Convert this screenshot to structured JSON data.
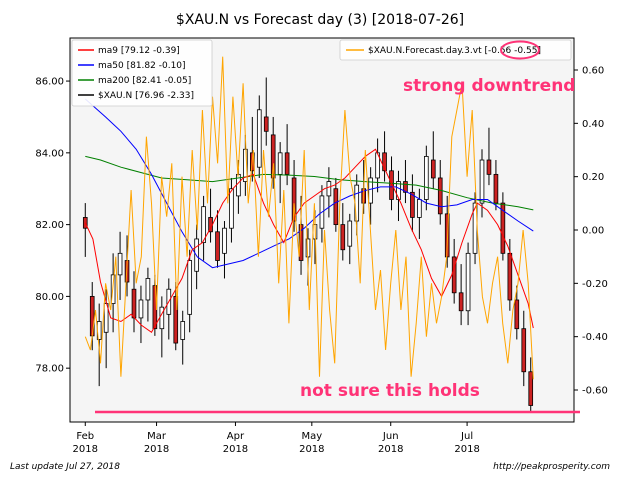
{
  "chart_data": {
    "type": "candlestick-with-overlays",
    "title": "$XAU.N vs Forecast day (3)  [2018-07-26]",
    "x_ticks": [
      {
        "date": "2018-02-01",
        "month": "Feb",
        "year": "2018"
      },
      {
        "date": "2018-03-01",
        "month": "Mar",
        "year": "2018"
      },
      {
        "date": "2018-04-01",
        "month": "Apr",
        "year": "2018"
      },
      {
        "date": "2018-05-01",
        "month": "May",
        "year": "2018"
      },
      {
        "date": "2018-06-01",
        "month": "Jun",
        "year": "2018"
      },
      {
        "date": "2018-07-01",
        "month": "Jul",
        "year": "2018"
      }
    ],
    "xlim": [
      "2018-01-26",
      "2018-08-12"
    ],
    "left_axis": {
      "ylim": [
        76.5,
        87.2
      ],
      "ticks": [
        "78.00",
        "80.00",
        "82.00",
        "84.00",
        "86.00"
      ]
    },
    "right_axis": {
      "ylim": [
        -0.72,
        0.72
      ],
      "ticks": [
        "-0.60",
        "-0.40",
        "-0.20",
        "0.00",
        "0.20",
        "0.40",
        "0.60"
      ]
    },
    "legend_left": [
      {
        "label": "ma9 [79.12 -0.39]",
        "color": "#ff0000"
      },
      {
        "label": "ma50 [81.82 -0.10]",
        "color": "#0000ff"
      },
      {
        "label": "ma200 [82.41 -0.05]",
        "color": "#008000"
      },
      {
        "label": "$XAU.N [76.96 -2.33]",
        "color": "#000000"
      }
    ],
    "legend_right": {
      "label_prefix": "$XAU.N.Forecast.day.3.vt",
      "value1": "-0.56",
      "value2": "-0.55",
      "color": "#ffa500"
    },
    "annotations": [
      {
        "text": "strong downtrend",
        "color": "#ff3377"
      },
      {
        "text": "not sure this holds",
        "color": "#ff3377"
      }
    ],
    "horizontal_line": {
      "value": 76.78,
      "color": "#ff3377"
    },
    "ma200": [
      [
        0,
        83.9
      ],
      [
        6,
        83.8
      ],
      [
        14,
        83.6
      ],
      [
        22,
        83.45
      ],
      [
        30,
        83.3
      ],
      [
        40,
        83.25
      ],
      [
        50,
        83.2
      ],
      [
        60,
        83.3
      ],
      [
        70,
        83.4
      ],
      [
        80,
        83.38
      ],
      [
        90,
        83.34
      ],
      [
        100,
        83.25
      ],
      [
        110,
        83.2
      ],
      [
        120,
        83.15
      ],
      [
        130,
        83.1
      ],
      [
        140,
        82.95
      ],
      [
        150,
        82.75
      ],
      [
        160,
        82.6
      ],
      [
        170,
        82.5
      ],
      [
        176,
        82.41
      ]
    ],
    "ma50": [
      [
        0,
        85.5
      ],
      [
        8,
        85.0
      ],
      [
        14,
        84.6
      ],
      [
        20,
        84.1
      ],
      [
        26,
        83.4
      ],
      [
        32,
        82.6
      ],
      [
        38,
        81.8
      ],
      [
        44,
        81.1
      ],
      [
        50,
        80.8
      ],
      [
        56,
        80.9
      ],
      [
        62,
        81.0
      ],
      [
        68,
        81.2
      ],
      [
        74,
        81.4
      ],
      [
        80,
        81.6
      ],
      [
        86,
        81.9
      ],
      [
        92,
        82.3
      ],
      [
        98,
        82.6
      ],
      [
        104,
        82.8
      ],
      [
        110,
        82.95
      ],
      [
        116,
        83.05
      ],
      [
        122,
        83.05
      ],
      [
        128,
        82.85
      ],
      [
        134,
        82.6
      ],
      [
        140,
        82.5
      ],
      [
        146,
        82.55
      ],
      [
        152,
        82.7
      ],
      [
        158,
        82.7
      ],
      [
        164,
        82.4
      ],
      [
        170,
        82.1
      ],
      [
        176,
        81.82
      ]
    ],
    "ma9": [
      [
        0,
        82.05
      ],
      [
        3,
        81.6
      ],
      [
        6,
        80.4
      ],
      [
        10,
        79.4
      ],
      [
        14,
        79.3
      ],
      [
        18,
        79.5
      ],
      [
        22,
        79.2
      ],
      [
        26,
        79.0
      ],
      [
        30,
        79.5
      ],
      [
        34,
        80.0
      ],
      [
        38,
        80.5
      ],
      [
        42,
        81.3
      ],
      [
        46,
        81.5
      ],
      [
        50,
        82.0
      ],
      [
        54,
        82.6
      ],
      [
        58,
        83.0
      ],
      [
        62,
        83.3
      ],
      [
        66,
        83.4
      ],
      [
        70,
        82.6
      ],
      [
        74,
        82.0
      ],
      [
        78,
        81.5
      ],
      [
        82,
        82.2
      ],
      [
        86,
        82.6
      ],
      [
        90,
        82.8
      ],
      [
        94,
        83.0
      ],
      [
        98,
        83.1
      ],
      [
        102,
        83.3
      ],
      [
        106,
        83.6
      ],
      [
        110,
        83.9
      ],
      [
        114,
        84.1
      ],
      [
        116,
        83.8
      ],
      [
        120,
        83.2
      ],
      [
        124,
        82.6
      ],
      [
        128,
        81.9
      ],
      [
        132,
        81.3
      ],
      [
        136,
        80.5
      ],
      [
        140,
        80.0
      ],
      [
        144,
        80.6
      ],
      [
        148,
        81.5
      ],
      [
        152,
        82.3
      ],
      [
        154,
        82.6
      ],
      [
        158,
        82.4
      ],
      [
        162,
        82.0
      ],
      [
        166,
        81.4
      ],
      [
        170,
        80.6
      ],
      [
        174,
        79.8
      ],
      [
        176,
        79.12
      ]
    ],
    "forecast": [
      [
        0,
        -0.4
      ],
      [
        2,
        -0.45
      ],
      [
        4,
        -0.3
      ],
      [
        6,
        -0.5
      ],
      [
        8,
        -0.2
      ],
      [
        10,
        -0.3
      ],
      [
        12,
        -0.1
      ],
      [
        14,
        -0.55
      ],
      [
        16,
        -0.2
      ],
      [
        18,
        0.15
      ],
      [
        20,
        -0.2
      ],
      [
        22,
        -0.1
      ],
      [
        24,
        0.35
      ],
      [
        26,
        0.1
      ],
      [
        28,
        -0.3
      ],
      [
        30,
        0.2
      ],
      [
        32,
        0.05
      ],
      [
        34,
        0.25
      ],
      [
        36,
        -0.3
      ],
      [
        38,
        0.2
      ],
      [
        40,
        -0.1
      ],
      [
        42,
        0.3
      ],
      [
        44,
        0.0
      ],
      [
        46,
        0.45
      ],
      [
        48,
        0.1
      ],
      [
        50,
        0.5
      ],
      [
        52,
        0.25
      ],
      [
        54,
        0.65
      ],
      [
        56,
        0.1
      ],
      [
        58,
        0.5
      ],
      [
        60,
        0.2
      ],
      [
        62,
        0.55
      ],
      [
        64,
        0.1
      ],
      [
        66,
        0.3
      ],
      [
        68,
        -0.1
      ],
      [
        70,
        0.3
      ],
      [
        72,
        0.05
      ],
      [
        74,
        0.25
      ],
      [
        76,
        -0.2
      ],
      [
        78,
        0.15
      ],
      [
        80,
        -0.35
      ],
      [
        82,
        0.1
      ],
      [
        84,
        -0.1
      ],
      [
        86,
        0.3
      ],
      [
        88,
        -0.3
      ],
      [
        90,
        0.1
      ],
      [
        92,
        -0.55
      ],
      [
        94,
        0.0
      ],
      [
        96,
        -0.3
      ],
      [
        98,
        -0.5
      ],
      [
        100,
        0.1
      ],
      [
        102,
        0.45
      ],
      [
        104,
        0.2
      ],
      [
        106,
        0.1
      ],
      [
        108,
        -0.2
      ],
      [
        110,
        0.3
      ],
      [
        112,
        0.0
      ],
      [
        114,
        -0.3
      ],
      [
        116,
        -0.15
      ],
      [
        118,
        -0.45
      ],
      [
        120,
        -0.2
      ],
      [
        122,
        0.0
      ],
      [
        124,
        -0.3
      ],
      [
        126,
        -0.1
      ],
      [
        128,
        -0.55
      ],
      [
        130,
        -0.35
      ],
      [
        132,
        -0.1
      ],
      [
        134,
        -0.4
      ],
      [
        136,
        -0.2
      ],
      [
        138,
        -0.35
      ],
      [
        140,
        -0.25
      ],
      [
        142,
        -0.1
      ],
      [
        144,
        0.35
      ],
      [
        146,
        0.45
      ],
      [
        148,
        0.55
      ],
      [
        150,
        0.2
      ],
      [
        152,
        0.45
      ],
      [
        154,
        0.0
      ],
      [
        156,
        -0.25
      ],
      [
        158,
        -0.35
      ],
      [
        160,
        -0.2
      ],
      [
        162,
        -0.1
      ],
      [
        164,
        -0.35
      ],
      [
        166,
        -0.5
      ],
      [
        168,
        -0.3
      ],
      [
        170,
        -0.2
      ],
      [
        172,
        0.0
      ],
      [
        174,
        -0.2
      ],
      [
        176,
        -0.56
      ]
    ],
    "candles": [
      [
        82.2,
        82.6,
        81.1,
        81.9
      ],
      [
        80.0,
        80.4,
        78.5,
        78.9
      ],
      [
        78.8,
        79.8,
        77.5,
        79.3
      ],
      [
        79.0,
        80.2,
        78.0,
        79.8
      ],
      [
        79.8,
        81.2,
        79.0,
        80.6
      ],
      [
        80.6,
        81.8,
        79.9,
        81.2
      ],
      [
        81.0,
        81.7,
        80.0,
        80.4
      ],
      [
        80.2,
        80.7,
        79.0,
        79.4
      ],
      [
        79.4,
        80.3,
        78.7,
        79.9
      ],
      [
        79.9,
        80.8,
        79.3,
        80.5
      ],
      [
        80.3,
        80.6,
        78.9,
        79.1
      ],
      [
        79.1,
        80.0,
        78.3,
        79.7
      ],
      [
        79.5,
        80.5,
        78.8,
        80.2
      ],
      [
        80.0,
        80.4,
        78.5,
        78.7
      ],
      [
        78.8,
        79.6,
        78.1,
        79.3
      ],
      [
        79.5,
        81.3,
        79.0,
        81.0
      ],
      [
        80.7,
        82.0,
        80.2,
        81.6
      ],
      [
        81.5,
        82.8,
        81.0,
        82.5
      ],
      [
        82.2,
        83.0,
        81.5,
        81.8
      ],
      [
        81.8,
        82.4,
        80.8,
        81.0
      ],
      [
        81.2,
        82.1,
        80.5,
        81.9
      ],
      [
        81.9,
        83.3,
        81.5,
        83.0
      ],
      [
        82.8,
        83.8,
        82.3,
        83.4
      ],
      [
        83.2,
        84.5,
        82.8,
        84.1
      ],
      [
        84.0,
        85.0,
        83.2,
        83.5
      ],
      [
        83.6,
        85.6,
        83.3,
        85.2
      ],
      [
        85.0,
        86.1,
        84.2,
        84.6
      ],
      [
        84.5,
        85.0,
        83.0,
        83.3
      ],
      [
        83.4,
        84.3,
        82.6,
        84.0
      ],
      [
        84.0,
        84.8,
        83.1,
        83.4
      ],
      [
        83.3,
        83.8,
        81.8,
        82.1
      ],
      [
        82.0,
        82.8,
        80.6,
        81.0
      ],
      [
        81.1,
        81.9,
        80.3,
        81.6
      ],
      [
        81.6,
        82.4,
        80.9,
        82.0
      ],
      [
        81.9,
        83.1,
        81.5,
        82.8
      ],
      [
        82.8,
        83.6,
        82.2,
        83.2
      ],
      [
        83.0,
        83.3,
        81.8,
        82.0
      ],
      [
        82.0,
        82.6,
        81.0,
        81.3
      ],
      [
        81.4,
        82.3,
        80.9,
        82.1
      ],
      [
        82.1,
        83.4,
        81.7,
        83.1
      ],
      [
        83.0,
        83.8,
        82.3,
        82.6
      ],
      [
        82.6,
        83.6,
        82.0,
        83.3
      ],
      [
        83.3,
        84.4,
        82.9,
        84.0
      ],
      [
        84.0,
        84.6,
        83.2,
        83.5
      ],
      [
        83.5,
        83.9,
        82.4,
        82.7
      ],
      [
        82.7,
        83.5,
        82.1,
        83.2
      ],
      [
        83.2,
        83.8,
        82.6,
        82.9
      ],
      [
        82.9,
        83.4,
        81.8,
        82.2
      ],
      [
        82.2,
        83.0,
        81.6,
        82.7
      ],
      [
        82.7,
        84.2,
        82.4,
        83.9
      ],
      [
        83.8,
        84.6,
        83.0,
        83.3
      ],
      [
        83.3,
        83.8,
        82.0,
        82.3
      ],
      [
        82.3,
        82.8,
        80.8,
        81.1
      ],
      [
        81.1,
        81.6,
        79.8,
        80.1
      ],
      [
        80.1,
        80.9,
        79.2,
        79.6
      ],
      [
        79.6,
        81.5,
        79.2,
        81.2
      ],
      [
        81.2,
        82.9,
        80.9,
        82.6
      ],
      [
        82.6,
        84.1,
        82.2,
        83.8
      ],
      [
        83.8,
        84.7,
        83.1,
        83.4
      ],
      [
        83.4,
        83.8,
        82.4,
        82.6
      ],
      [
        82.6,
        82.9,
        81.0,
        81.2
      ],
      [
        81.2,
        81.6,
        79.6,
        79.9
      ],
      [
        79.9,
        80.3,
        78.8,
        79.1
      ],
      [
        79.1,
        79.6,
        77.5,
        77.9
      ],
      [
        77.9,
        78.3,
        76.8,
        76.96
      ]
    ]
  },
  "footer": {
    "left": "Last update Jul 27, 2018",
    "right": "http://peakprosperity.com"
  }
}
